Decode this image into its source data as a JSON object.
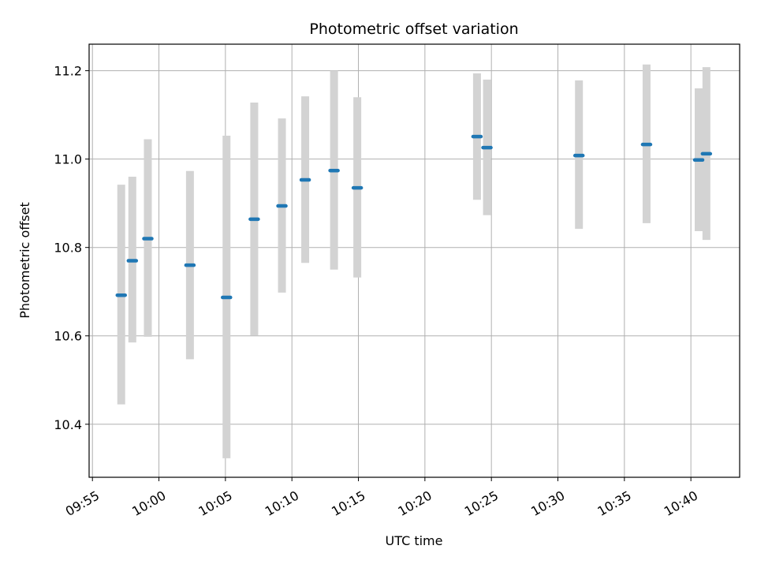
{
  "chart_data": {
    "type": "scatter",
    "title": "Photometric offset variation",
    "xlabel": "UTC time",
    "ylabel": "Photometric offset",
    "x_ticks": [
      "09:55",
      "10:00",
      "10:05",
      "10:10",
      "10:15",
      "10:20",
      "10:25",
      "10:30",
      "10:35",
      "10:40"
    ],
    "y_ticks": [
      "10.4",
      "10.6",
      "10.8",
      "11.0",
      "11.2"
    ],
    "xlim": [
      "09:54:45",
      "10:43:40"
    ],
    "ylim": [
      10.28,
      11.26
    ],
    "grid": true,
    "marker_color": "#1f77b4",
    "errorbar_color": "#d3d3d3",
    "series": [
      {
        "x": [
          "09:57:10",
          "09:58:00",
          "09:59:10",
          "10:02:20",
          "10:05:05",
          "10:07:10",
          "10:09:15",
          "10:11:00",
          "10:13:10",
          "10:14:55",
          "10:23:55",
          "10:24:40",
          "10:31:35",
          "10:36:40",
          "10:40:35",
          "10:41:10"
        ],
        "y": [
          10.692,
          10.77,
          10.82,
          10.76,
          10.687,
          10.864,
          10.894,
          10.953,
          10.974,
          10.935,
          11.051,
          11.026,
          11.008,
          11.033,
          10.998,
          11.012
        ],
        "err_low": [
          10.445,
          10.585,
          10.598,
          10.547,
          10.323,
          10.601,
          10.698,
          10.765,
          10.75,
          10.732,
          10.908,
          10.873,
          10.842,
          10.855,
          10.837,
          10.817
        ],
        "err_high": [
          10.942,
          10.96,
          11.045,
          10.973,
          11.053,
          11.128,
          11.092,
          11.142,
          11.2,
          11.14,
          11.194,
          11.18,
          11.178,
          11.214,
          11.16,
          11.208
        ]
      }
    ]
  }
}
